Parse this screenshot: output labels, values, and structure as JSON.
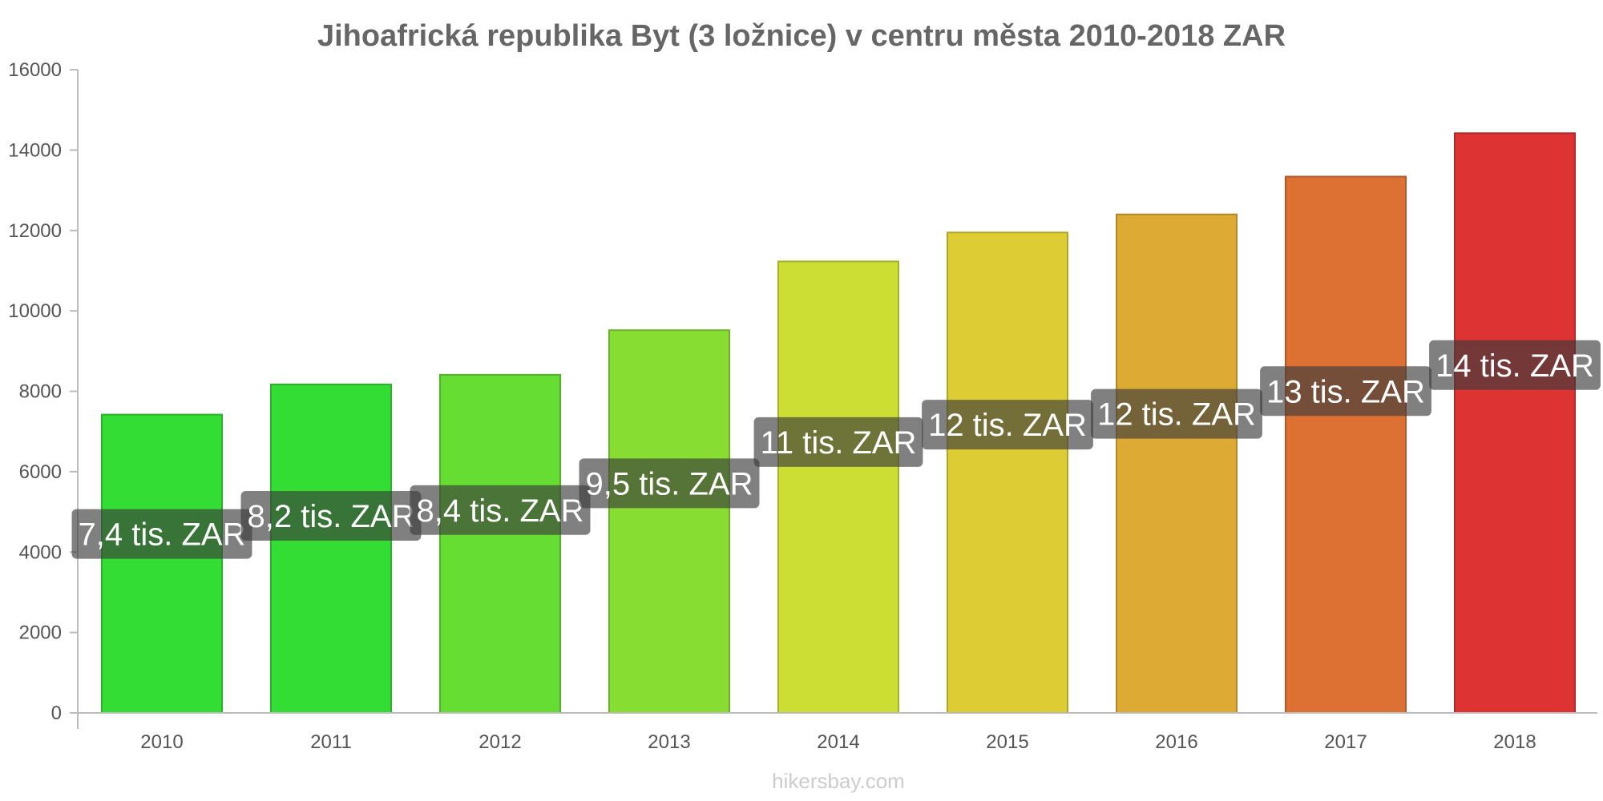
{
  "chart_data": {
    "type": "bar",
    "title": "Jihoafrická republika Byt (3 ložnice) v centru města 2010-2018 ZAR",
    "xlabel": "",
    "ylabel": "",
    "categories": [
      "2010",
      "2011",
      "2012",
      "2013",
      "2014",
      "2015",
      "2016",
      "2017",
      "2018"
    ],
    "values": [
      7420,
      8170,
      8410,
      9520,
      11230,
      11950,
      12400,
      13340,
      14420
    ],
    "data_labels": [
      "7,4 tis. ZAR",
      "8,2 tis. ZAR",
      "8,4 tis. ZAR",
      "9,5 tis. ZAR",
      "11 tis. ZAR",
      "12 tis. ZAR",
      "12 tis. ZAR",
      "13 tis. ZAR",
      "14 tis. ZAR"
    ],
    "colors": [
      "#33dd33",
      "#33dd33",
      "#66dd33",
      "#88dd33",
      "#ccdd33",
      "#ddcc33",
      "#ddaa33",
      "#dd7033",
      "#dd3333"
    ],
    "ylim": [
      0,
      16000
    ],
    "yticks": [
      "0",
      "2000",
      "4000",
      "6000",
      "8000",
      "10000",
      "12000",
      "14000",
      "16000"
    ],
    "grid": false,
    "legend": "none"
  },
  "watermark": "hikersbay.com"
}
